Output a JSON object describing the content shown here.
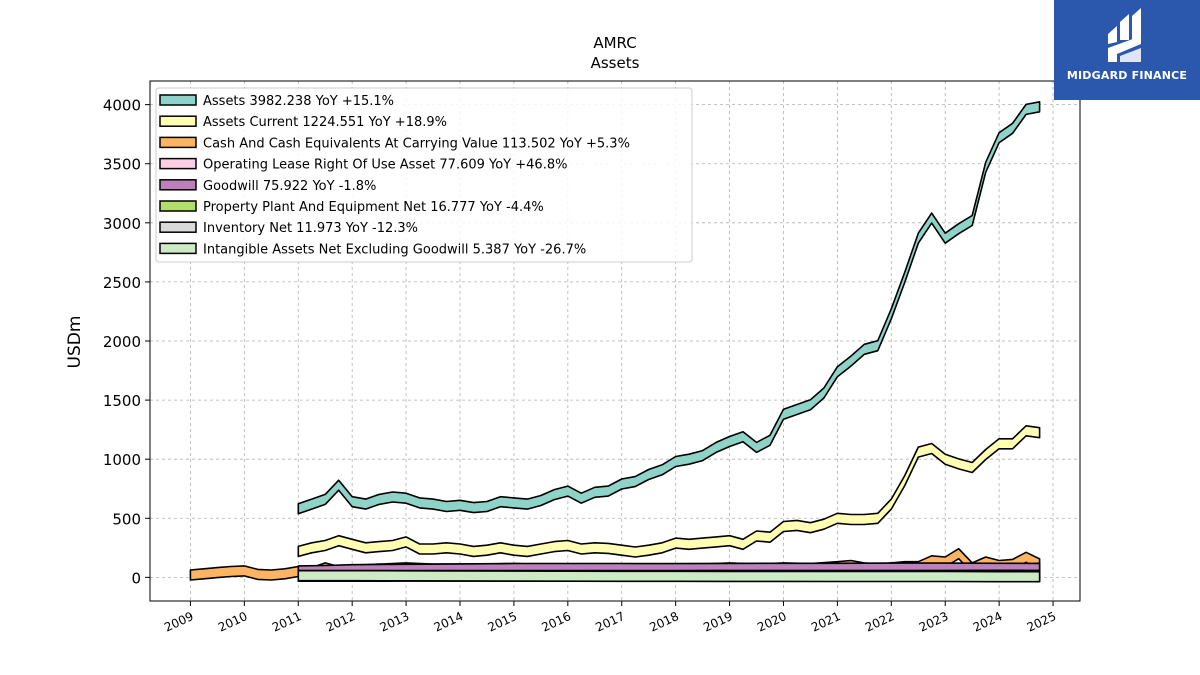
{
  "brand": {
    "name": "MIDGARD FINANCE",
    "bg_color": "#2b58ad"
  },
  "chart_data": {
    "type": "area",
    "title": "AMRC",
    "subtitle": "Assets",
    "ylabel": "USDm",
    "xlabel": "",
    "ylim": [
      -200,
      4200
    ],
    "xlim": [
      2008.25,
      2025.5
    ],
    "yticks": [
      0,
      500,
      1000,
      1500,
      2000,
      2500,
      3000,
      3500,
      4000
    ],
    "xticks": [
      2009,
      2010,
      2011,
      2012,
      2013,
      2014,
      2015,
      2016,
      2017,
      2018,
      2019,
      2020,
      2021,
      2022,
      2023,
      2024,
      2025
    ],
    "grid": true,
    "legend_position": "top-left",
    "series": [
      {
        "name": "Assets",
        "legend": "Assets  3982.238 YoY +15.1%",
        "color": "#8dd3c7",
        "x": [
          2011.0,
          2011.25,
          2011.5,
          2011.75,
          2012.0,
          2012.25,
          2012.5,
          2012.75,
          2013.0,
          2013.25,
          2013.5,
          2013.75,
          2014.0,
          2014.25,
          2014.5,
          2014.75,
          2015.0,
          2015.25,
          2015.5,
          2015.75,
          2016.0,
          2016.25,
          2016.5,
          2016.75,
          2017.0,
          2017.25,
          2017.5,
          2017.75,
          2018.0,
          2018.25,
          2018.5,
          2018.75,
          2019.0,
          2019.25,
          2019.5,
          2019.75,
          2020.0,
          2020.25,
          2020.5,
          2020.75,
          2021.0,
          2021.25,
          2021.5,
          2021.75,
          2022.0,
          2022.25,
          2022.5,
          2022.75,
          2023.0,
          2023.25,
          2023.5,
          2023.75,
          2024.0,
          2024.25,
          2024.5,
          2024.75
        ],
        "y": [
          580,
          620,
          660,
          780,
          640,
          620,
          660,
          680,
          670,
          630,
          620,
          600,
          610,
          590,
          600,
          640,
          630,
          620,
          650,
          700,
          730,
          670,
          720,
          730,
          790,
          810,
          870,
          910,
          980,
          1000,
          1030,
          1100,
          1150,
          1190,
          1100,
          1160,
          1380,
          1420,
          1460,
          1560,
          1740,
          1830,
          1930,
          1960,
          2230,
          2540,
          2870,
          3040,
          2870,
          2950,
          3020,
          3470,
          3720,
          3800,
          3960,
          3982
        ]
      },
      {
        "name": "Assets Current",
        "legend": "Assets Current  1224.551 YoY +18.9%",
        "color": "#ffffb3",
        "x": [
          2011.0,
          2011.25,
          2011.5,
          2011.75,
          2012.0,
          2012.25,
          2012.5,
          2012.75,
          2013.0,
          2013.25,
          2013.5,
          2013.75,
          2014.0,
          2014.25,
          2014.5,
          2014.75,
          2015.0,
          2015.25,
          2015.5,
          2015.75,
          2016.0,
          2016.25,
          2016.5,
          2016.75,
          2017.0,
          2017.25,
          2017.5,
          2017.75,
          2018.0,
          2018.25,
          2018.5,
          2018.75,
          2019.0,
          2019.25,
          2019.5,
          2019.75,
          2020.0,
          2020.25,
          2020.5,
          2020.75,
          2021.0,
          2021.25,
          2021.5,
          2021.75,
          2022.0,
          2022.25,
          2022.5,
          2022.75,
          2023.0,
          2023.25,
          2023.5,
          2023.75,
          2024.0,
          2024.25,
          2024.5,
          2024.75
        ],
        "y": [
          220,
          250,
          270,
          310,
          280,
          250,
          260,
          270,
          300,
          240,
          240,
          250,
          240,
          220,
          230,
          250,
          230,
          220,
          240,
          260,
          270,
          240,
          250,
          245,
          230,
          215,
          230,
          250,
          290,
          280,
          290,
          300,
          310,
          280,
          350,
          340,
          430,
          440,
          420,
          450,
          500,
          490,
          490,
          500,
          620,
          820,
          1060,
          1090,
          1000,
          960,
          930,
          1040,
          1130,
          1130,
          1240,
          1224
        ]
      },
      {
        "name": "Cash And Cash Equivalents At Carrying Value",
        "legend": "Cash And Cash Equivalents At Carrying Value  113.502 YoY +5.3%",
        "color": "#fdb462",
        "x": [
          2009.0,
          2009.25,
          2009.5,
          2009.75,
          2010.0,
          2010.25,
          2010.5,
          2010.75,
          2011.0,
          2011.25,
          2011.5,
          2011.75,
          2012.0,
          2012.5,
          2013.0,
          2013.5,
          2014.0,
          2014.5,
          2015.0,
          2015.5,
          2016.0,
          2016.5,
          2017.0,
          2017.5,
          2018.0,
          2018.5,
          2019.0,
          2019.5,
          2020.0,
          2020.5,
          2021.0,
          2021.25,
          2021.5,
          2021.75,
          2022.0,
          2022.25,
          2022.5,
          2022.75,
          2023.0,
          2023.25,
          2023.5,
          2023.75,
          2024.0,
          2024.25,
          2024.5,
          2024.75
        ],
        "y": [
          20,
          30,
          40,
          50,
          55,
          25,
          20,
          30,
          50,
          40,
          80,
          50,
          60,
          70,
          80,
          70,
          70,
          70,
          75,
          70,
          70,
          70,
          70,
          70,
          65,
          70,
          80,
          70,
          80,
          75,
          90,
          100,
          80,
          70,
          80,
          90,
          90,
          140,
          130,
          200,
          80,
          130,
          100,
          110,
          170,
          113.502
        ]
      },
      {
        "name": "Operating Lease Right Of Use Asset",
        "legend": "Operating Lease Right Of Use Asset  77.609 YoY +46.8%",
        "color": "#fccde5",
        "x": [
          2019.0,
          2019.5,
          2020.0,
          2020.5,
          2021.0,
          2021.5,
          2022.0,
          2022.5,
          2023.0,
          2023.5,
          2024.0,
          2024.5,
          2024.75
        ],
        "y": [
          40,
          42,
          45,
          45,
          48,
          50,
          55,
          55,
          55,
          52,
          53,
          70,
          77.609
        ]
      },
      {
        "name": "Goodwill",
        "legend": "Goodwill  75.922 YoY -1.8%",
        "color": "#bc80bd",
        "x": [
          2011.0,
          2011.5,
          2012.0,
          2013.0,
          2014.0,
          2015.0,
          2016.0,
          2017.0,
          2018.0,
          2019.0,
          2020.0,
          2021.0,
          2022.0,
          2023.0,
          2024.0,
          2024.75
        ],
        "y": [
          55,
          58,
          65,
          68,
          72,
          75,
          75,
          75,
          74,
          76,
          77,
          77,
          78,
          78,
          77,
          75.922
        ]
      },
      {
        "name": "Property Plant And Equipment Net",
        "legend": "Property Plant And Equipment Net  16.777 YoY -4.4%",
        "color": "#b3de69",
        "x": [
          2011.0,
          2012.0,
          2013.0,
          2014.0,
          2015.0,
          2016.0,
          2017.0,
          2018.0,
          2019.0,
          2020.0,
          2021.0,
          2022.0,
          2023.0,
          2024.0,
          2024.75
        ],
        "y": [
          14,
          15,
          15,
          16,
          16,
          16,
          16,
          16,
          17,
          17,
          17,
          17,
          17,
          17.5,
          16.777
        ]
      },
      {
        "name": "Inventory Net",
        "legend": "Inventory Net  11.973 YoY -12.3%",
        "color": "#d9d9d9",
        "x": [
          2011.0,
          2012.0,
          2013.0,
          2014.0,
          2015.0,
          2016.0,
          2017.0,
          2018.0,
          2019.0,
          2020.0,
          2021.0,
          2022.0,
          2023.0,
          2024.0,
          2024.75
        ],
        "y": [
          10,
          10,
          11,
          11,
          11,
          12,
          12,
          12,
          12,
          12,
          12,
          12,
          13,
          13,
          11.973
        ]
      },
      {
        "name": "Intangible Assets Net Excluding Goodwill",
        "legend": "Intangible Assets Net Excluding Goodwill  5.387 YoY -26.7%",
        "color": "#ccebc5",
        "x": [
          2011.0,
          2012.0,
          2013.0,
          2014.0,
          2015.0,
          2016.0,
          2017.0,
          2018.0,
          2019.0,
          2020.0,
          2021.0,
          2022.0,
          2023.0,
          2024.0,
          2024.75
        ],
        "y": [
          15,
          14,
          13,
          12,
          11,
          10,
          9,
          9,
          8,
          8,
          7,
          7,
          7,
          6,
          5.387
        ]
      }
    ]
  }
}
